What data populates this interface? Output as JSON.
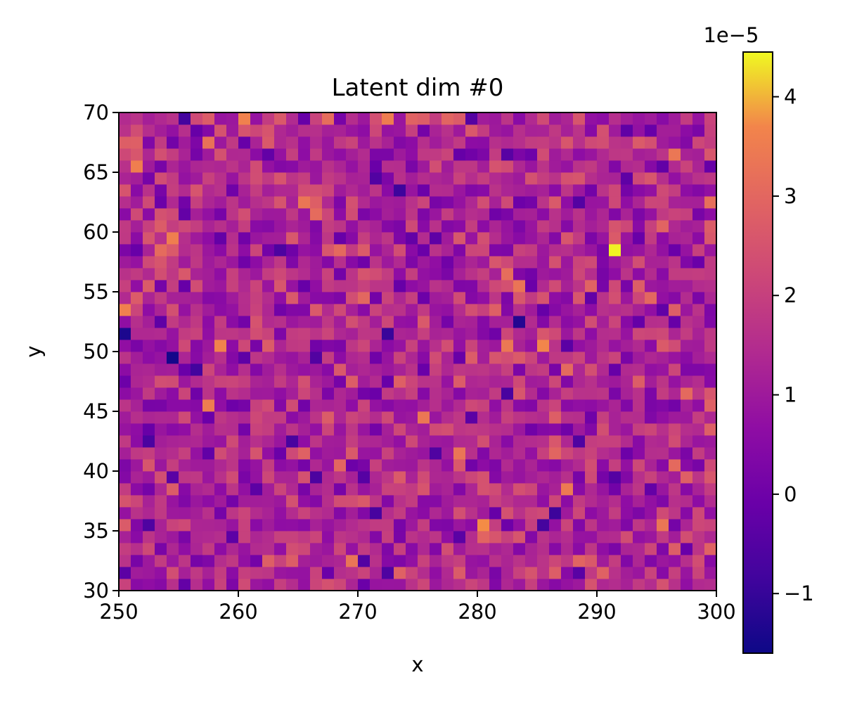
{
  "chart_data": {
    "type": "heatmap",
    "title": "Latent dim #0",
    "xlabel": "x",
    "ylabel": "y",
    "xlim": [
      250,
      300
    ],
    "ylim": [
      30,
      70
    ],
    "xticks": [
      "250",
      "260",
      "270",
      "280",
      "290",
      "300"
    ],
    "yticks": [
      "30",
      "35",
      "40",
      "45",
      "50",
      "55",
      "60",
      "65",
      "70"
    ],
    "grid_cols": 50,
    "grid_rows": 40,
    "colormap": "plasma",
    "colorbar": {
      "range": [
        -1.6e-05,
        4.45e-05
      ],
      "ticks": [
        "−1",
        "0",
        "1",
        "2",
        "3",
        "4"
      ],
      "tick_values": [
        -1,
        0,
        1,
        2,
        3,
        4
      ],
      "multiplier": "1e−5"
    },
    "value_notes": "Cell values range roughly from -1.6e-5 to 4.45e-5; most lie between 0 and 2e-5. Notable extremes: max about 4.4e-5 near (291.5, 58.5); min about -1.5e-5 near (254.5, 49.5) and (250.5, 51.5)."
  }
}
